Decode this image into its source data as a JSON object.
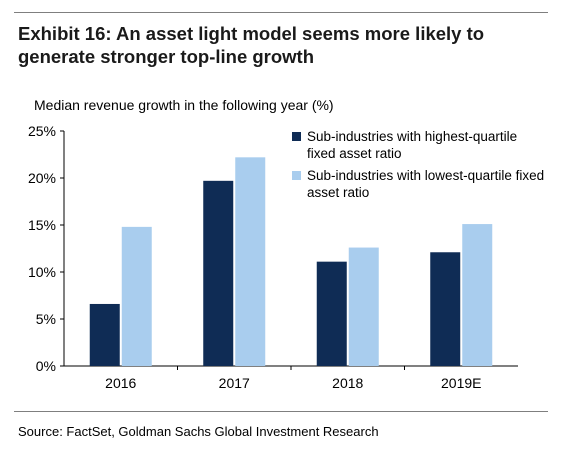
{
  "exhibit": {
    "title": "Exhibit 16: An asset light model seems more likely to generate stronger top-line growth",
    "source": "Source: FactSet, Goldman Sachs Global Investment Research"
  },
  "chart_data": {
    "type": "bar",
    "subtitle": "Median revenue growth in the following year (%)",
    "categories": [
      "2016",
      "2017",
      "2018",
      "2019E"
    ],
    "series": [
      {
        "name": "Sub-industries with highest-quartile fixed asset ratio",
        "color": "#0f2c55",
        "values": [
          6.6,
          19.7,
          11.1,
          12.1
        ]
      },
      {
        "name": "Sub-industries with lowest-quartile fixed asset ratio",
        "color": "#a9cdee",
        "values": [
          14.8,
          22.2,
          12.6,
          15.1
        ]
      }
    ],
    "ylim": [
      0,
      25
    ],
    "yticks": [
      "0%",
      "5%",
      "10%",
      "15%",
      "20%",
      "25%"
    ],
    "ytick_values": [
      0,
      5,
      10,
      15,
      20,
      25
    ],
    "grid": false,
    "legend": "top-right"
  }
}
